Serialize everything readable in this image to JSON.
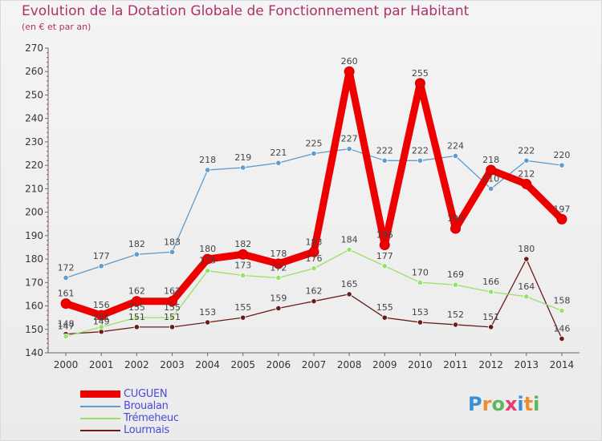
{
  "title": "Evolution de la Dotation Globale de Fonctionnement par Habitant",
  "subtitle": "(en € et par an)",
  "logo": {
    "text": "Proxiti",
    "colors": [
      "#3a8fd9",
      "#f28c28",
      "#5cb85c",
      "#e83a6f",
      "#3a8fd9",
      "#f28c28",
      "#5cb85c"
    ]
  },
  "chart_data": {
    "type": "line",
    "x": [
      "2000",
      "2001",
      "2002",
      "2003",
      "2004",
      "2005",
      "2006",
      "2007",
      "2008",
      "2009",
      "2010",
      "2011",
      "2012",
      "2013",
      "2014"
    ],
    "ylim": [
      140,
      270
    ],
    "yticks": [
      140,
      150,
      160,
      170,
      180,
      190,
      200,
      210,
      220,
      230,
      240,
      250,
      260,
      270
    ],
    "grid": false,
    "legend_position": "bottom-left",
    "series": [
      {
        "name": "Lourmais",
        "color": "#6b1b1b",
        "values": [
          148,
          149,
          151,
          151,
          153,
          155,
          159,
          162,
          165,
          155,
          153,
          152,
          151,
          180,
          146
        ]
      },
      {
        "name": "Trémeheuc",
        "color": "#99e066",
        "values": [
          147,
          151,
          155,
          155,
          175,
          173,
          172,
          176,
          184,
          177,
          170,
          169,
          166,
          164,
          158
        ]
      },
      {
        "name": "Broualan",
        "color": "#5d9ccf",
        "values": [
          172,
          177,
          182,
          183,
          218,
          219,
          221,
          225,
          227,
          222,
          222,
          224,
          210,
          222,
          220
        ]
      },
      {
        "name": "CUGUEN",
        "color": "#ee0000",
        "values": [
          161,
          156,
          162,
          162,
          180,
          182,
          178,
          183,
          260,
          186,
          255,
          193,
          218,
          212,
          197
        ]
      }
    ]
  },
  "legend": [
    {
      "label": "CUGUEN",
      "color": "#ee0000"
    },
    {
      "label": "Broualan",
      "color": "#5d9ccf"
    },
    {
      "label": "Trémeheuc",
      "color": "#99e066"
    },
    {
      "label": "Lourmais",
      "color": "#6b1b1b"
    }
  ]
}
